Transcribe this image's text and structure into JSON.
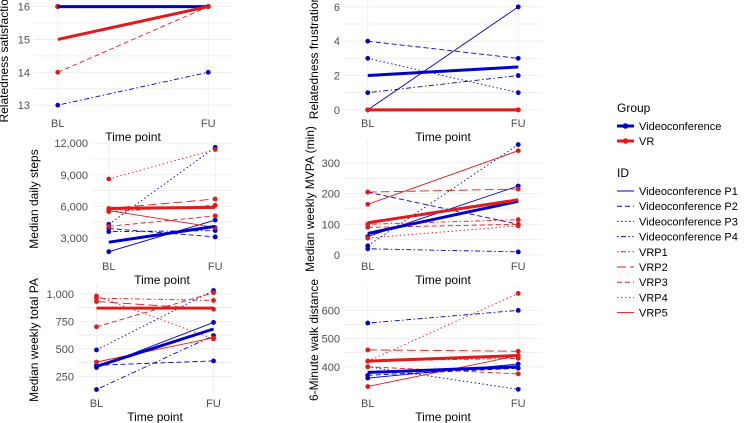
{
  "chart_data": {
    "type": "line",
    "x_categories": [
      "BL",
      "FU"
    ],
    "colors": {
      "Videoconference": "#0000cc",
      "VR": "#e31a1c"
    },
    "linetypes": {
      "Videoconference P1": "solid",
      "Videoconference P2": "dashed",
      "Videoconference P3": "dotted",
      "Videoconference P4": "dotdash",
      "VRP1": "dotdash",
      "VRP2": "longdash",
      "VRP3": "dashed",
      "VRP4": "dotted",
      "VRP5": "solid"
    },
    "legend": {
      "group_title": "Group",
      "groups": [
        "Videoconference",
        "VR"
      ],
      "id_title": "ID",
      "ids": [
        {
          "label": "Videoconference P1",
          "group": "Videoconference"
        },
        {
          "label": "Videoconference P2",
          "group": "Videoconference"
        },
        {
          "label": "Videoconference P3",
          "group": "Videoconference"
        },
        {
          "label": "Videoconference P4",
          "group": "Videoconference"
        },
        {
          "label": "VRP1",
          "group": "VR"
        },
        {
          "label": "VRP2",
          "group": "VR"
        },
        {
          "label": "VRP3",
          "group": "VR"
        },
        {
          "label": "VRP4",
          "group": "VR"
        },
        {
          "label": "VRP5",
          "group": "VR"
        }
      ]
    },
    "panels": [
      {
        "id": "relsat",
        "ylabel": "Relatedness satisfaction",
        "xlabel": "Time point",
        "ylim": [
          12.7,
          16.2
        ],
        "yticks": [
          13,
          14,
          15,
          16
        ],
        "ytick_labels": [
          "13",
          "14",
          "15",
          "16"
        ],
        "individuals": [
          {
            "id": "Videoconference P1",
            "group": "Videoconference",
            "values": [
              16,
              16
            ]
          },
          {
            "id": "Videoconference P2",
            "group": "Videoconference",
            "values": [
              16,
              16
            ]
          },
          {
            "id": "Videoconference P3",
            "group": "Videoconference",
            "values": [
              16,
              16
            ]
          },
          {
            "id": "Videoconference P4",
            "group": "Videoconference",
            "values": [
              13,
              14
            ]
          },
          {
            "id": "VRP1",
            "group": "VR",
            "values": [
              16,
              16
            ]
          },
          {
            "id": "VRP2",
            "group": "VR",
            "values": [
              16,
              16
            ]
          },
          {
            "id": "VRP3",
            "group": "VR",
            "values": [
              14,
              16
            ]
          },
          {
            "id": "VRP4",
            "group": "VR",
            "values": [
              16,
              16
            ]
          },
          {
            "id": "VRP5",
            "group": "VR",
            "values": [
              16,
              16
            ]
          }
        ],
        "means": [
          {
            "group": "Videoconference",
            "values": [
              16,
              16
            ]
          },
          {
            "group": "VR",
            "values": [
              15,
              16
            ]
          }
        ]
      },
      {
        "id": "relfru",
        "ylabel": "Relatedness frustration",
        "xlabel": "Time point",
        "ylim": [
          -0.3,
          6.4
        ],
        "yticks": [
          0,
          2,
          4,
          6
        ],
        "ytick_labels": [
          "0",
          "2",
          "4",
          "6"
        ],
        "individuals": [
          {
            "id": "Videoconference P1",
            "group": "Videoconference",
            "values": [
              0,
              6
            ]
          },
          {
            "id": "Videoconference P2",
            "group": "Videoconference",
            "values": [
              4,
              3
            ]
          },
          {
            "id": "Videoconference P3",
            "group": "Videoconference",
            "values": [
              3,
              1
            ]
          },
          {
            "id": "Videoconference P4",
            "group": "Videoconference",
            "values": [
              1,
              2
            ]
          },
          {
            "id": "VRP1",
            "group": "VR",
            "values": [
              0,
              0
            ]
          },
          {
            "id": "VRP2",
            "group": "VR",
            "values": [
              0,
              0
            ]
          },
          {
            "id": "VRP3",
            "group": "VR",
            "values": [
              0,
              0
            ]
          },
          {
            "id": "VRP4",
            "group": "VR",
            "values": [
              0,
              0
            ]
          },
          {
            "id": "VRP5",
            "group": "VR",
            "values": [
              0,
              0
            ]
          }
        ],
        "means": [
          {
            "group": "Videoconference",
            "values": [
              2,
              2.5
            ]
          },
          {
            "group": "VR",
            "values": [
              0,
              0
            ]
          }
        ]
      },
      {
        "id": "steps",
        "ylabel": "Median daily steps",
        "xlabel": "Time point",
        "ylim": [
          1100,
          12300
        ],
        "yticks": [
          3000,
          6000,
          9000,
          12000
        ],
        "ytick_labels": [
          "3,000",
          "6,000",
          "9,000",
          "12,000"
        ],
        "individuals": [
          {
            "id": "Videoconference P1",
            "group": "Videoconference",
            "values": [
              1700,
              4700
            ]
          },
          {
            "id": "Videoconference P2",
            "group": "Videoconference",
            "values": [
              3900,
              3100
            ]
          },
          {
            "id": "Videoconference P3",
            "group": "Videoconference",
            "values": [
              4300,
              11600
            ]
          },
          {
            "id": "Videoconference P4",
            "group": "Videoconference",
            "values": [
              3600,
              3700
            ]
          },
          {
            "id": "VRP1",
            "group": "VR",
            "values": [
              5500,
              6100
            ]
          },
          {
            "id": "VRP2",
            "group": "VR",
            "values": [
              5800,
              6700
            ]
          },
          {
            "id": "VRP3",
            "group": "VR",
            "values": [
              4100,
              5100
            ]
          },
          {
            "id": "VRP4",
            "group": "VR",
            "values": [
              8600,
              11400
            ]
          },
          {
            "id": "VRP5",
            "group": "VR",
            "values": [
              5600,
              4000
            ]
          }
        ],
        "means": [
          {
            "group": "Videoconference",
            "values": [
              2600,
              4100
            ]
          },
          {
            "group": "VR",
            "values": [
              5800,
              5900
            ]
          }
        ]
      },
      {
        "id": "mvpa",
        "ylabel": "Median weekly MVPA (min)",
        "xlabel": "Time point",
        "ylim": [
          -10,
          375
        ],
        "yticks": [
          0,
          100,
          200,
          300
        ],
        "ytick_labels": [
          "0",
          "100",
          "200",
          "300"
        ],
        "individuals": [
          {
            "id": "Videoconference P1",
            "group": "Videoconference",
            "values": [
              60,
              225
            ]
          },
          {
            "id": "Videoconference P2",
            "group": "Videoconference",
            "values": [
              205,
              100
            ]
          },
          {
            "id": "Videoconference P3",
            "group": "Videoconference",
            "values": [
              30,
              360
            ]
          },
          {
            "id": "Videoconference P4",
            "group": "Videoconference",
            "values": [
              20,
              10
            ]
          },
          {
            "id": "VRP1",
            "group": "VR",
            "values": [
              100,
              115
            ]
          },
          {
            "id": "VRP2",
            "group": "VR",
            "values": [
              205,
              215
            ]
          },
          {
            "id": "VRP3",
            "group": "VR",
            "values": [
              90,
              100
            ]
          },
          {
            "id": "VRP4",
            "group": "VR",
            "values": [
              55,
              95
            ]
          },
          {
            "id": "VRP5",
            "group": "VR",
            "values": [
              165,
              340
            ]
          }
        ],
        "means": [
          {
            "group": "Videoconference",
            "values": [
              70,
              175
            ]
          },
          {
            "group": "VR",
            "values": [
              105,
              180
            ]
          }
        ]
      },
      {
        "id": "totalpa",
        "ylabel": "Median weekly total PA",
        "xlabel": "Time point",
        "ylim": [
          80,
          1080
        ],
        "yticks": [
          250,
          500,
          750,
          1000
        ],
        "ytick_labels": [
          "250",
          "500",
          "750",
          "1,000"
        ],
        "individuals": [
          {
            "id": "Videoconference P1",
            "group": "Videoconference",
            "values": [
              330,
              740
            ]
          },
          {
            "id": "Videoconference P2",
            "group": "Videoconference",
            "values": [
              350,
              390
            ]
          },
          {
            "id": "Videoconference P3",
            "group": "Videoconference",
            "values": [
              490,
              1030
            ]
          },
          {
            "id": "Videoconference P4",
            "group": "Videoconference",
            "values": [
              130,
              620
            ]
          },
          {
            "id": "VRP1",
            "group": "VR",
            "values": [
              960,
              940
            ]
          },
          {
            "id": "VRP2",
            "group": "VR",
            "values": [
              930,
              860
            ]
          },
          {
            "id": "VRP3",
            "group": "VR",
            "values": [
              700,
              1010
            ]
          },
          {
            "id": "VRP4",
            "group": "VR",
            "values": [
              980,
              590
            ]
          },
          {
            "id": "VRP5",
            "group": "VR",
            "values": [
              380,
              600
            ]
          }
        ],
        "means": [
          {
            "group": "Videoconference",
            "values": [
              340,
              680
            ]
          },
          {
            "group": "VR",
            "values": [
              870,
              870
            ]
          }
        ]
      },
      {
        "id": "walk",
        "ylabel": "6-Minute walk distance",
        "xlabel": "Time point",
        "ylim": [
          300,
          690
        ],
        "yticks": [
          400,
          500,
          600
        ],
        "ytick_labels": [
          "400",
          "500",
          "600"
        ],
        "individuals": [
          {
            "id": "Videoconference P1",
            "group": "Videoconference",
            "values": [
              360,
              410
            ]
          },
          {
            "id": "Videoconference P2",
            "group": "Videoconference",
            "values": [
              370,
              395
            ]
          },
          {
            "id": "Videoconference P3",
            "group": "Videoconference",
            "values": [
              400,
              320
            ]
          },
          {
            "id": "Videoconference P4",
            "group": "Videoconference",
            "values": [
              555,
              600
            ]
          },
          {
            "id": "VRP1",
            "group": "VR",
            "values": [
              420,
              430
            ]
          },
          {
            "id": "VRP2",
            "group": "VR",
            "values": [
              460,
              455
            ]
          },
          {
            "id": "VRP3",
            "group": "VR",
            "values": [
              400,
              375
            ]
          },
          {
            "id": "VRP4",
            "group": "VR",
            "values": [
              420,
              660
            ]
          },
          {
            "id": "VRP5",
            "group": "VR",
            "values": [
              330,
              440
            ]
          }
        ],
        "means": [
          {
            "group": "Videoconference",
            "values": [
              380,
              400
            ]
          },
          {
            "group": "VR",
            "values": [
              420,
              440
            ]
          }
        ]
      }
    ]
  }
}
